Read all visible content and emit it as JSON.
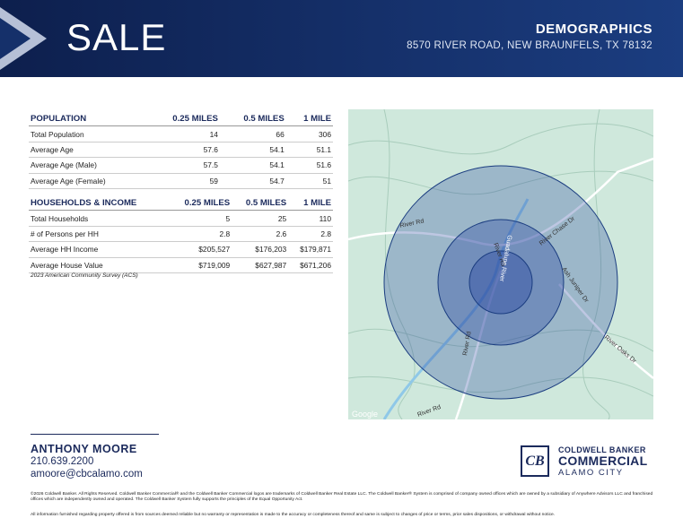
{
  "header": {
    "title": "SALE",
    "heading": "DEMOGRAPHICS",
    "address": "8570 RIVER ROAD, NEW BRAUNFELS, TX 78132"
  },
  "population": {
    "columns": [
      "POPULATION",
      "0.25 MILES",
      "0.5 MILES",
      "1 MILE"
    ],
    "rows": [
      [
        "Total Population",
        "14",
        "66",
        "306"
      ],
      [
        "Average Age",
        "57.6",
        "54.1",
        "51.1"
      ],
      [
        "Average Age (Male)",
        "57.5",
        "54.1",
        "51.6"
      ],
      [
        "Average Age (Female)",
        "59",
        "54.7",
        "51"
      ]
    ]
  },
  "households": {
    "columns": [
      "HOUSEHOLDS & INCOME",
      "0.25 MILES",
      "0.5 MILES",
      "1 MILE"
    ],
    "rows": [
      [
        "Total Households",
        "5",
        "25",
        "110"
      ],
      [
        "# of Persons per HH",
        "2.8",
        "2.6",
        "2.8"
      ],
      [
        "Average HH Income",
        "$205,527",
        "$176,203",
        "$179,871"
      ],
      [
        "Average House Value",
        "$719,009",
        "$627,987",
        "$671,206"
      ]
    ]
  },
  "source": "2023 American Community Survey (ACS)",
  "map": {
    "labels": [
      "River Rd",
      "River Chase Dr",
      "River Rd",
      "Guadalupe River",
      "Ash Juniper Dr",
      "River Rd",
      "River Oaks Dr",
      "River Rd",
      "Google"
    ]
  },
  "agent": {
    "name": "ANTHONY MOORE",
    "phone": "210.639.2200",
    "email": "amoore@cbcalamo.com"
  },
  "logo": {
    "line1": "COLDWELL BANKER",
    "line2": "COMMERCIAL",
    "line3": "ALAMO CITY"
  },
  "disclaimers": [
    "©2026 Coldwell Banker. All Rights Reserved. Coldwell Banker Commercial® and the Coldwell Banker Commercial logos are trademarks of Coldwell Banker Real Estate LLC. The Coldwell Banker® System is comprised of company owned offices which are owned by a subsidiary of Anywhere Advisors LLC and franchised offices which are independently owned and operated. The Coldwell Banker System fully supports the principles of the Equal Opportunity Act.",
    "All information furnished regarding property offered is from sources deemed reliable but no warranty or representation is made to the accuracy or completeness thereof and same is subject to changes of price or terms, prior sales dispositions, or withdrawal without notice."
  ]
}
